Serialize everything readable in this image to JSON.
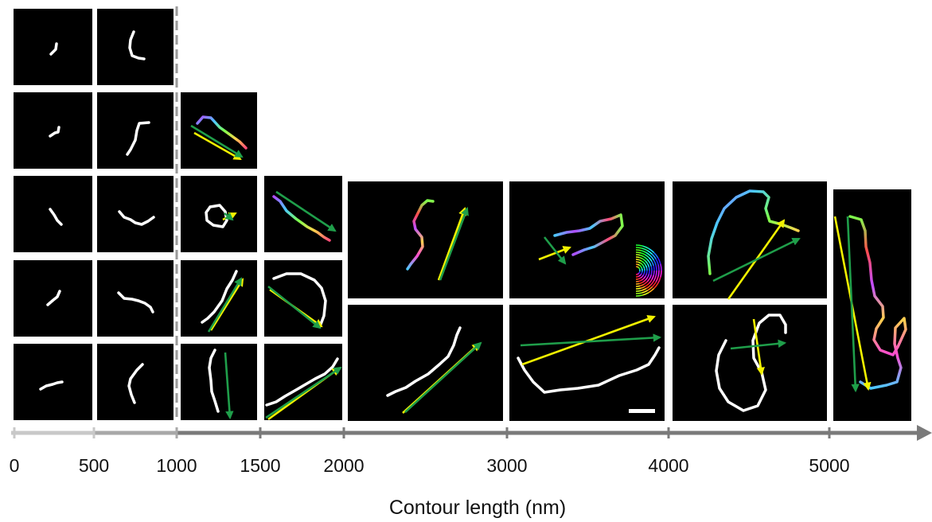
{
  "axis": {
    "title": "Contour length (nm)",
    "ticks": [
      {
        "value": 0,
        "label": "0"
      },
      {
        "value": 500,
        "label": "500"
      },
      {
        "value": 1000,
        "label": "1000"
      },
      {
        "value": 1500,
        "label": "1500"
      },
      {
        "value": 2000,
        "label": "2000"
      },
      {
        "value": 3000,
        "label": "3000"
      },
      {
        "value": 4000,
        "label": "4000"
      },
      {
        "value": 5000,
        "label": "5000"
      }
    ],
    "colors": {
      "light_segment": "#c8c8c8",
      "mid_segment": "#a8a8a8",
      "dark_segment": "#7a7a7a"
    }
  },
  "colors": {
    "panel_background": "#000000",
    "strand": "#ffffff",
    "end_to_end_arrow": "#f2f200",
    "principal_axis_arrow": "#1f9e4a",
    "divider": "#9a9a9a"
  },
  "columns": [
    {
      "range": "0-500",
      "panel_count": 5,
      "annotated": false
    },
    {
      "range": "500-1000",
      "panel_count": 5,
      "annotated": false
    },
    {
      "range": "1000-1500",
      "panel_count": 4,
      "annotated": true
    },
    {
      "range": "1500-2000",
      "panel_count": 3,
      "annotated": true
    },
    {
      "range": "2000-3000",
      "panel_count": 2,
      "annotated": true
    },
    {
      "range": "3000-4000",
      "panel_count": 2,
      "annotated": true
    },
    {
      "range": "4000-5000",
      "panel_count": 2,
      "annotated": true
    },
    {
      "range": "5000+",
      "panel_count": 1,
      "annotated": true
    }
  ],
  "legend": {
    "icon": "orientation-color-wheel-icon"
  },
  "scale_bar": {
    "icon": "scale-bar-icon"
  }
}
